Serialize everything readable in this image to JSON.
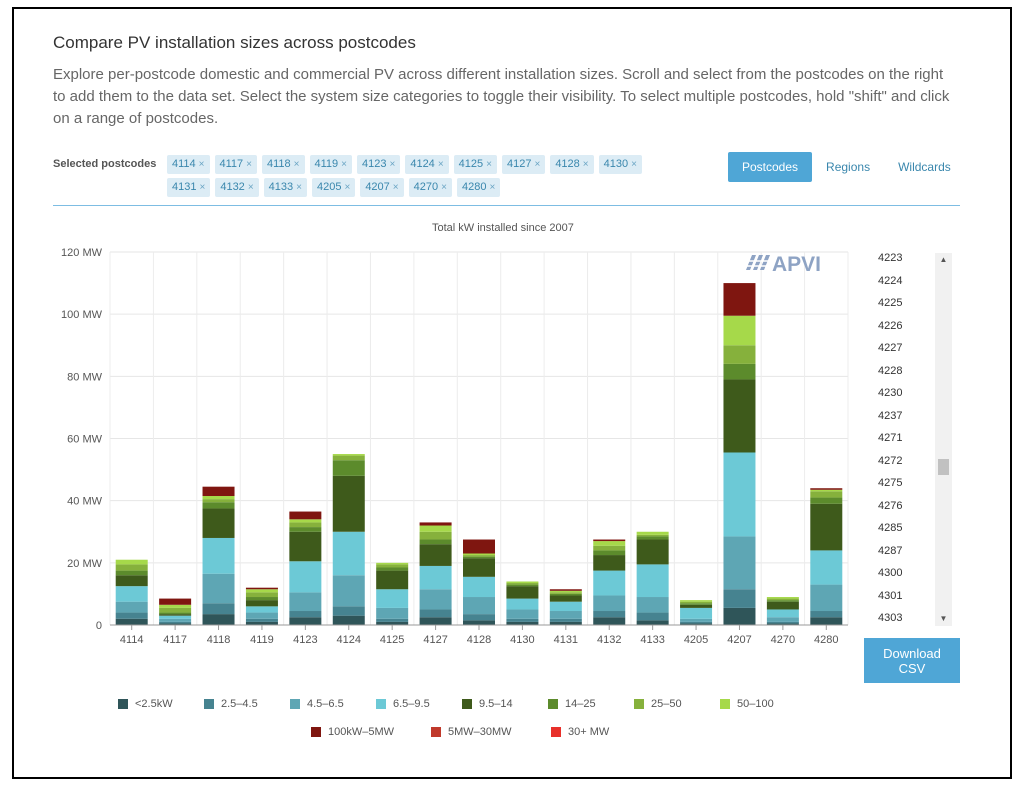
{
  "header": {
    "title": "Compare PV installation sizes across postcodes",
    "description": "Explore per-postcode domestic and commercial PV across different installation sizes. Scroll and select from the postcodes on the right to add them to the data set. Select the system size categories to toggle their visibility. To select multiple postcodes, hold \"shift\" and click on a range of postcodes."
  },
  "selected": {
    "label": "Selected postcodes",
    "remove_glyph": "×",
    "postcodes": [
      "4114",
      "4117",
      "4118",
      "4119",
      "4123",
      "4124",
      "4125",
      "4127",
      "4128",
      "4130",
      "4131",
      "4132",
      "4133",
      "4205",
      "4207",
      "4270",
      "4280"
    ]
  },
  "tabs": [
    {
      "label": "Postcodes",
      "active": true
    },
    {
      "label": "Regions",
      "active": false
    },
    {
      "label": "Wildcards",
      "active": false
    }
  ],
  "postcode_list": {
    "items": [
      "4223",
      "4224",
      "4225",
      "4226",
      "4227",
      "4228",
      "4230",
      "4237",
      "4271",
      "4272",
      "4275",
      "4276",
      "4285",
      "4287",
      "4300",
      "4301",
      "4303"
    ],
    "scroll_up_icon": "triangle-up-icon",
    "scroll_down_icon": "triangle-down-icon"
  },
  "download": {
    "line1": "Download",
    "line2": "CSV"
  },
  "watermark": "APVI",
  "chart_data": {
    "type": "bar",
    "stacked": true,
    "title": "Total kW installed since 2007",
    "ylim": [
      0,
      120
    ],
    "yticks": [
      "0",
      "20 MW",
      "40 MW",
      "60 MW",
      "80 MW",
      "100 MW",
      "120 MW"
    ],
    "grid": true,
    "legend_position": "bottom",
    "categories": [
      "4114",
      "4117",
      "4118",
      "4119",
      "4123",
      "4124",
      "4125",
      "4127",
      "4128",
      "4130",
      "4131",
      "4132",
      "4133",
      "4205",
      "4207",
      "4270",
      "4280"
    ],
    "series": [
      {
        "name": "<2.5kW",
        "color": "#2f5559",
        "values": [
          2.0,
          0.5,
          3.5,
          1.0,
          2.5,
          3.0,
          1.0,
          2.5,
          1.5,
          1.0,
          1.0,
          2.5,
          1.5,
          0.5,
          5.5,
          0.5,
          2.5
        ]
      },
      {
        "name": "2.5–4.5",
        "color": "#468390",
        "values": [
          2.0,
          0.5,
          3.5,
          1.0,
          2.0,
          3.0,
          1.0,
          2.5,
          2.0,
          1.0,
          1.0,
          2.0,
          2.5,
          0.5,
          6.0,
          0.5,
          2.0
        ]
      },
      {
        "name": "4.5–6.5",
        "color": "#5ea6b4",
        "values": [
          3.5,
          1.0,
          9.5,
          2.0,
          6.0,
          10.0,
          3.5,
          6.5,
          5.5,
          3.0,
          2.5,
          5.0,
          5.0,
          1.0,
          17.0,
          1.5,
          8.5
        ]
      },
      {
        "name": "6.5–9.5",
        "color": "#6cc9d6",
        "values": [
          5.0,
          1.0,
          11.5,
          2.0,
          10.0,
          14.0,
          6.0,
          7.5,
          6.5,
          3.5,
          3.0,
          8.0,
          10.5,
          3.5,
          27.0,
          2.5,
          11.0
        ]
      },
      {
        "name": "9.5–14",
        "color": "#3e5a1b",
        "values": [
          3.5,
          0.5,
          9.5,
          2.0,
          9.5,
          18.0,
          6.0,
          7.0,
          6.0,
          4.0,
          2.0,
          5.0,
          8.0,
          1.0,
          23.5,
          2.5,
          15.0
        ]
      },
      {
        "name": "14–25",
        "color": "#5c8b2c",
        "values": [
          1.5,
          0.5,
          2.0,
          1.0,
          1.5,
          5.0,
          1.0,
          1.5,
          0.5,
          0.5,
          0.5,
          1.5,
          1.0,
          0.5,
          5.0,
          0.5,
          2.0
        ]
      },
      {
        "name": "25–50",
        "color": "#86b13c",
        "values": [
          2.0,
          1.5,
          1.0,
          1.5,
          1.5,
          1.5,
          1.0,
          2.5,
          0.5,
          0.5,
          0.5,
          1.5,
          0.5,
          0.5,
          6.0,
          0.5,
          2.0
        ]
      },
      {
        "name": "50–100",
        "color": "#a6d94a",
        "values": [
          1.5,
          1.0,
          1.0,
          1.0,
          1.0,
          0.5,
          0.5,
          2.0,
          0.5,
          0.5,
          0.5,
          1.5,
          1.0,
          0.5,
          9.5,
          0.5,
          0.5
        ]
      },
      {
        "name": "100kW–5MW",
        "color": "#7f1610",
        "values": [
          0,
          2.0,
          3.0,
          0.5,
          2.5,
          0,
          0,
          1.0,
          4.5,
          0,
          0.5,
          0.5,
          0,
          0,
          10.5,
          0,
          0.5
        ]
      },
      {
        "name": "5MW–30MW",
        "color": "#c0392b",
        "values": [
          0,
          0,
          0,
          0,
          0,
          0,
          0,
          0,
          0,
          0,
          0,
          0,
          0,
          0,
          0,
          0,
          0
        ]
      },
      {
        "name": "30+ MW",
        "color": "#e8302a",
        "values": [
          0,
          0,
          0,
          0,
          0,
          0,
          0,
          0,
          0,
          0,
          0,
          0,
          0,
          0,
          0,
          0,
          0
        ]
      }
    ]
  }
}
